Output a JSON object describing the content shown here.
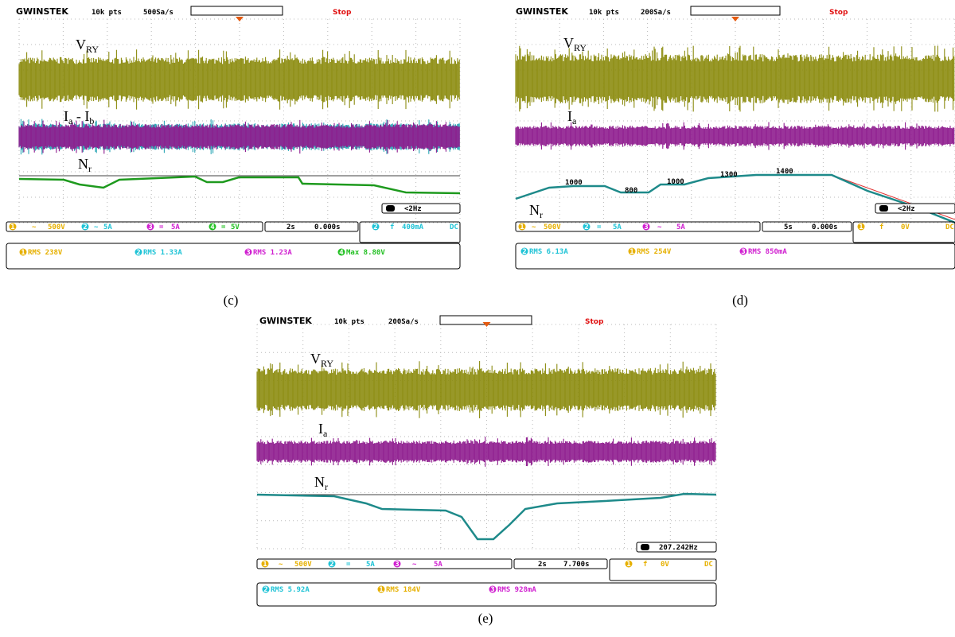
{
  "panels": [
    {
      "caption": "(c)",
      "header": {
        "brand": "GWINSTEK",
        "points": "10k pts",
        "rate": "500Sa/s",
        "state": "Stop"
      },
      "traces": [
        [
          {
            "text": "V"
          },
          {
            "sub": "RY"
          }
        ],
        [
          {
            "text": "I"
          },
          {
            "sub": "a"
          },
          {
            "text": " - I"
          },
          {
            "sub": "b"
          }
        ],
        [
          {
            "text": "N"
          },
          {
            "sub": "r"
          }
        ]
      ],
      "channels": [
        {
          "n": "1",
          "coupling": "~",
          "scale": "500V"
        },
        {
          "n": "2",
          "coupling": "~",
          "scale": "5A"
        },
        {
          "n": "3",
          "coupling": "=",
          "scale": "5A"
        },
        {
          "n": "4",
          "coupling": "=",
          "scale": "5V"
        }
      ],
      "timebase": "2s",
      "position": "0.000s",
      "trigger": {
        "channel": "2",
        "slope": "f",
        "level": "400mA",
        "coupling": "DC"
      },
      "frequency": "<2Hz",
      "measurements": [
        {
          "channel": "1",
          "text": "RMS 238V"
        },
        {
          "channel": "2",
          "text": "RMS 1.33A"
        },
        {
          "channel": "3",
          "text": "RMS 1.23A"
        },
        {
          "channel": "4",
          "text": "Max 8.80V"
        }
      ]
    },
    {
      "caption": "(d)",
      "header": {
        "brand": "GWINSTEK",
        "points": "10k pts",
        "rate": "200Sa/s",
        "state": "Stop"
      },
      "traces": [
        [
          {
            "text": "V"
          },
          {
            "sub": "RY"
          }
        ],
        [
          {
            "text": "I"
          },
          {
            "sub": "a"
          }
        ],
        [
          {
            "text": "N"
          },
          {
            "sub": "r"
          }
        ]
      ],
      "annotations": [
        "1000",
        "800",
        "1000",
        "1300",
        "1400"
      ],
      "channels": [
        {
          "n": "1",
          "coupling": "~",
          "scale": "500V"
        },
        {
          "n": "2",
          "coupling": "=",
          "scale": "5A"
        },
        {
          "n": "3",
          "coupling": "~",
          "scale": "5A"
        }
      ],
      "timebase": "5s",
      "position": "0.000s",
      "trigger": {
        "channel": "1",
        "slope": "f",
        "level": "0V",
        "coupling": "DC"
      },
      "frequency": "<2Hz",
      "measurements": [
        {
          "channel": "2",
          "text": "RMS 6.13A"
        },
        {
          "channel": "1",
          "text": "RMS 254V"
        },
        {
          "channel": "3",
          "text": "RMS 850mA"
        }
      ]
    },
    {
      "caption": "(e)",
      "header": {
        "brand": "GWINSTEK",
        "points": "10k pts",
        "rate": "200Sa/s",
        "state": "Stop"
      },
      "traces": [
        [
          {
            "text": "V"
          },
          {
            "sub": "RY"
          }
        ],
        [
          {
            "text": "I"
          },
          {
            "sub": "a"
          }
        ],
        [
          {
            "text": "N"
          },
          {
            "sub": "r"
          }
        ]
      ],
      "channels": [
        {
          "n": "1",
          "coupling": "~",
          "scale": "500V"
        },
        {
          "n": "2",
          "coupling": "=",
          "scale": "5A"
        },
        {
          "n": "3",
          "coupling": "~",
          "scale": "5A"
        }
      ],
      "timebase": "2s",
      "position": "7.700s",
      "trigger": {
        "channel": "1",
        "slope": "f",
        "level": "0V",
        "coupling": "DC"
      },
      "frequency": "207.242Hz",
      "measurements": [
        {
          "channel": "2",
          "text": "RMS 5.92A"
        },
        {
          "channel": "1",
          "text": "RMS 184V"
        },
        {
          "channel": "3",
          "text": "RMS 928mA"
        }
      ]
    }
  ]
}
